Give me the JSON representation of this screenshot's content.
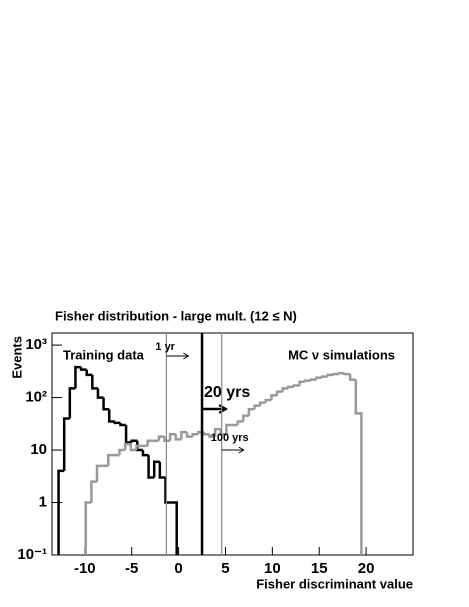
{
  "chart_data": {
    "type": "histogram",
    "title": "Fisher distribution - large mult. (12 ≤ N)",
    "x_label": "Fisher discriminant value",
    "y_label": "Events",
    "log_y": true,
    "grid": false,
    "xlim": [
      -13.5,
      25
    ],
    "ylim": [
      0.1,
      1700
    ],
    "xticks": [
      -10,
      -5,
      0,
      5,
      10,
      15,
      20
    ],
    "yticks": [
      {
        "value": 0.1,
        "label": "10⁻¹"
      },
      1,
      10,
      {
        "value": 100,
        "label": "10²"
      },
      {
        "value": 1000,
        "label": "10³"
      }
    ],
    "series": [
      {
        "name": "Training data",
        "color": "#000000",
        "bins": [
          -12.8,
          -12.2,
          -11.6,
          -11,
          -10.4,
          -9.8,
          -9.2,
          -8.6,
          -8,
          -7.4,
          -6.8,
          -6.2,
          -5.6,
          -5,
          -4.4,
          -3.8,
          -3.2,
          -2.6,
          -2,
          -1.4,
          -0.8,
          -0.2
        ],
        "values": [
          4,
          40,
          150,
          380,
          340,
          270,
          150,
          100,
          60,
          35,
          33,
          30,
          14,
          15,
          10,
          8,
          3,
          6,
          3,
          1,
          1
        ]
      },
      {
        "name": "MC ν simulations",
        "color": "#999999",
        "bins": [
          -9.9,
          -9.3,
          -8.7,
          -8.1,
          -7.5,
          -6.9,
          -6.3,
          -5.7,
          -5.1,
          -4.5,
          -3.9,
          -3.3,
          -2.7,
          -2.1,
          -1.5,
          -0.9,
          -0.3,
          0.3,
          0.9,
          1.5,
          2.1,
          2.7,
          3.3,
          3.9,
          4.5,
          5.1,
          5.7,
          6.3,
          6.9,
          7.5,
          8.1,
          8.7,
          9.3,
          9.9,
          10.5,
          11.1,
          11.7,
          12.3,
          12.9,
          13.5,
          14.1,
          14.7,
          15.3,
          15.9,
          16.5,
          17.1,
          17.7,
          18.3,
          18.9,
          19.5
        ],
        "values": [
          1,
          2.5,
          5,
          5,
          8,
          8,
          10,
          13,
          10,
          12,
          12,
          15,
          15,
          18,
          15,
          20,
          16,
          22,
          18,
          20,
          22,
          20,
          18,
          25,
          20,
          30,
          30,
          35,
          45,
          60,
          70,
          80,
          90,
          110,
          130,
          150,
          160,
          170,
          200,
          210,
          220,
          240,
          250,
          270,
          280,
          290,
          280,
          220,
          50
        ]
      }
    ],
    "cuts": [
      {
        "x": -1.3,
        "label": "1 yr",
        "color": "#888888"
      },
      {
        "x": 2.5,
        "label": "20 yrs",
        "color": "#000000"
      },
      {
        "x": 4.6,
        "label": "100 yrs",
        "color": "#888888"
      }
    ]
  }
}
